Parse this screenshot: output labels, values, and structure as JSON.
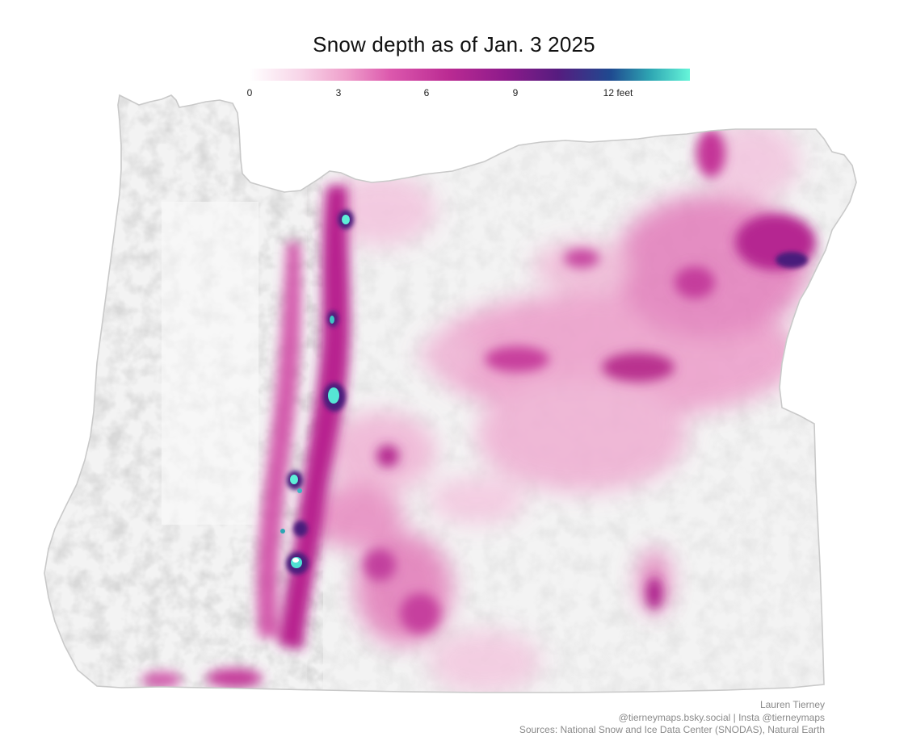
{
  "map": {
    "title": "Snow depth as of Jan. 3 2025",
    "legend": {
      "ticks": [
        "0",
        "3",
        "6",
        "9",
        "12 feet"
      ],
      "tick_values": [
        0,
        3,
        6,
        9,
        12
      ],
      "range": [
        0,
        15
      ],
      "colors": [
        "#ffffff",
        "#f3b8d8",
        "#d94ea6",
        "#b51f8c",
        "#861a8a",
        "#4a1d7c",
        "#1b4f93",
        "#5ef0d8"
      ]
    },
    "credits": {
      "author": "Lauren Tierney",
      "social": "@tierneymaps.bsky.social | Insta @tierneymaps",
      "sources": "Sources: National Snow and Ice Data Center (SNODAS), Natural Earth"
    }
  }
}
